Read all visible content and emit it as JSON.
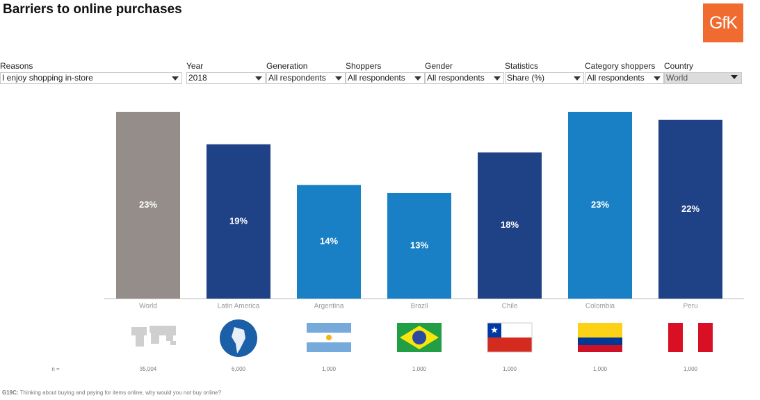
{
  "logo": "GfK",
  "filters": [
    {
      "label": "Reasons",
      "value": "I enjoy shopping in-store"
    },
    {
      "label": "Year",
      "value": "2018"
    },
    {
      "label": "Generation",
      "value": "All respondents"
    },
    {
      "label": "Shoppers",
      "value": "All respondents"
    },
    {
      "label": "Gender",
      "value": "All respondents"
    },
    {
      "label": "Statistics",
      "value": "Share (%)"
    },
    {
      "label": "Category shoppers",
      "value": "All respondents"
    },
    {
      "label": "Country",
      "value": "World"
    }
  ],
  "footnote_code": "G19C:",
  "footnote": "Thinking about buying and paying for items online, why would you not buy online?",
  "chart_data": {
    "type": "bar",
    "title": "Barriers to online purchases",
    "categories": [
      "World",
      "Latin America",
      "Argentina",
      "Brazil",
      "Chile",
      "Colombia",
      "Peru"
    ],
    "values": [
      23,
      19,
      14,
      13,
      18,
      23,
      22
    ],
    "value_labels": [
      "23%",
      "19%",
      "14%",
      "13%",
      "18%",
      "23%",
      "22%"
    ],
    "colors": [
      "#958d89",
      "#1f4286",
      "#1a80c6",
      "#1a80c6",
      "#1f4286",
      "#1a80c6",
      "#1f4286"
    ],
    "sample_label": "n =",
    "sample_sizes": [
      {
        "value": 35004,
        "label": "35,004"
      },
      {
        "value": 6000,
        "label": "6,000"
      },
      {
        "value": 1000,
        "label": "1,000"
      },
      {
        "value": 1000,
        "label": "1,000"
      },
      {
        "value": 1000,
        "label": "1,000"
      },
      {
        "value": 1000,
        "label": "1,000"
      },
      {
        "value": 1000,
        "label": "1,000"
      }
    ]
  }
}
